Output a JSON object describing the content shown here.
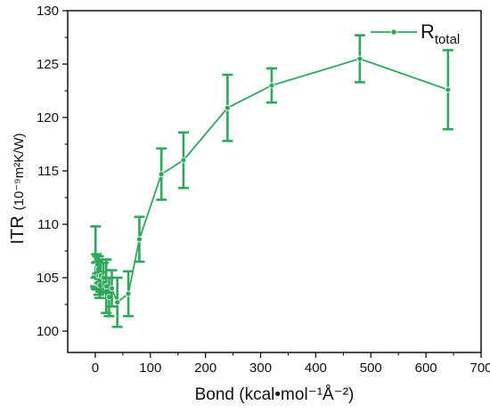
{
  "chart_data": {
    "type": "line",
    "xlabel": "Bond (kcal•mol⁻¹Å⁻²)",
    "ylabel_main": "ITR",
    "ylabel_unit": "(10⁻⁹m²K/W)",
    "xlim": [
      -50,
      700
    ],
    "ylim": [
      98,
      130
    ],
    "xticks": [
      0,
      100,
      200,
      300,
      400,
      500,
      600,
      700
    ],
    "yticks": [
      100,
      105,
      110,
      115,
      120,
      125,
      130
    ],
    "grid": false,
    "legend_position": "top-right",
    "legend_base": "R",
    "legend_sub": "total",
    "series": [
      {
        "name": "Rtotal",
        "color": "#2fa85c",
        "marker": "circle",
        "x": [
          0.5,
          1,
          2,
          3,
          4,
          5,
          6,
          8,
          10,
          15,
          20,
          25,
          30,
          40,
          60,
          80,
          120,
          160,
          240,
          320,
          480,
          640
        ],
        "y": [
          107.0,
          104.5,
          106.8,
          104.5,
          106.2,
          105.8,
          105.2,
          104.3,
          105.2,
          105.0,
          104.2,
          103.2,
          104.0,
          102.7,
          103.5,
          108.6,
          114.7,
          116.0,
          120.9,
          123.0,
          125.5,
          122.6
        ],
        "err": [
          2.8,
          0.5,
          0.4,
          0.6,
          0.8,
          0.7,
          1.8,
          1.2,
          1.5,
          1.4,
          2.5,
          1.8,
          1.7,
          2.3,
          2.1,
          2.1,
          2.4,
          2.6,
          3.1,
          1.6,
          2.2,
          3.7
        ]
      }
    ]
  }
}
